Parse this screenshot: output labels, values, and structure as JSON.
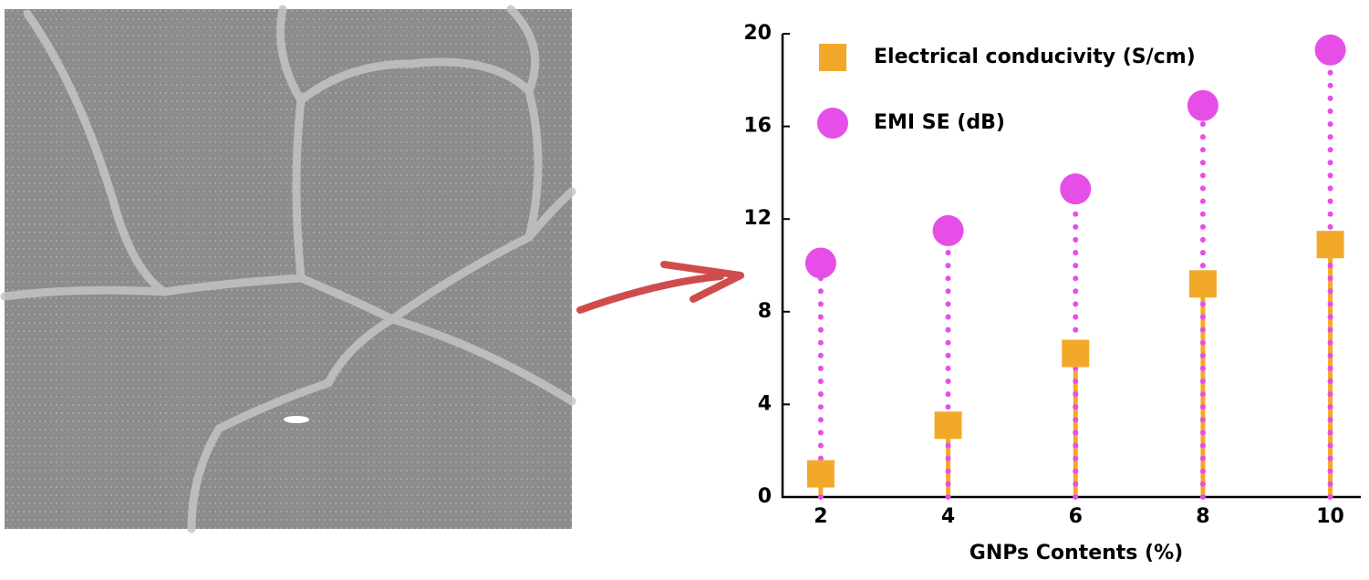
{
  "chart_data": {
    "type": "scatter",
    "xlabel": "GNPs Contents (%)",
    "x": [
      2,
      4,
      6,
      8,
      10
    ],
    "series": [
      {
        "name": "Electrical conducivity (S/cm)",
        "color": "#f2a92a",
        "marker": "square",
        "values": [
          1.0,
          3.1,
          6.2,
          9.2,
          10.9
        ]
      },
      {
        "name": "EMI SE (dB)",
        "color": "#e64ee8",
        "marker": "circle",
        "values": [
          10.1,
          11.5,
          13.3,
          16.9,
          19.3
        ]
      }
    ],
    "xlim": [
      1.4,
      10.45
    ],
    "xticks": [
      2,
      4,
      6,
      8,
      10
    ],
    "ylim": [
      0,
      20
    ],
    "yticks": [
      0,
      4,
      8,
      12,
      16,
      20
    ],
    "legend": "upper left"
  }
}
